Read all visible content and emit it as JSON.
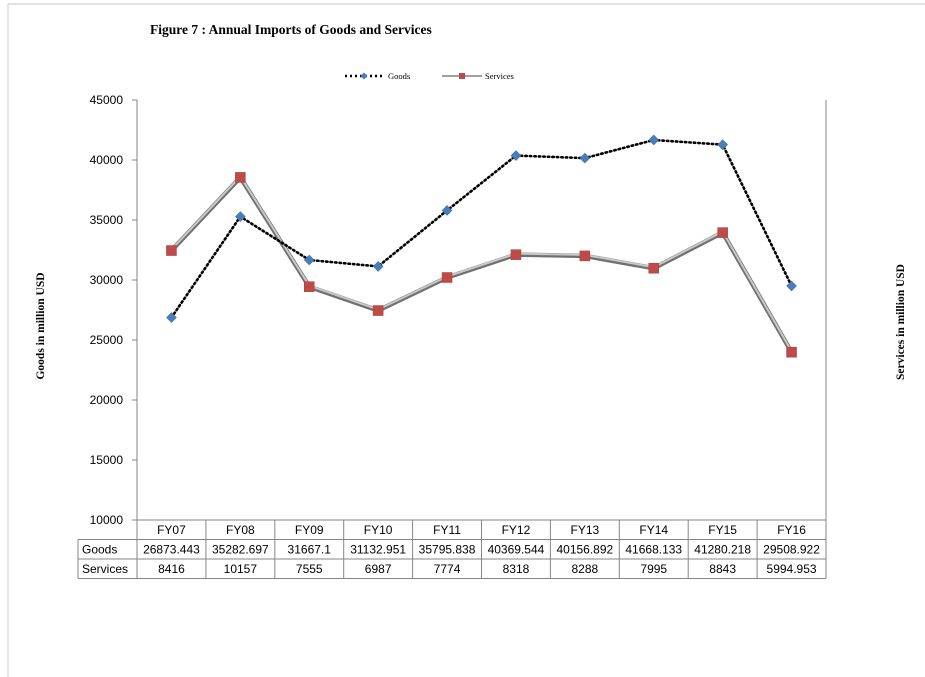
{
  "chart_data": {
    "type": "line",
    "title": "Figure  7 : Annual Imports of Goods and Services",
    "ylabel": "Goods in million USD",
    "y2label": "Services in million  USD",
    "categories": [
      "FY07",
      "FY08",
      "FY09",
      "FY10",
      "FY11",
      "FY12",
      "FY13",
      "FY14",
      "FY15",
      "FY16"
    ],
    "ylim": [
      10000,
      45000
    ],
    "yticks": [
      10000,
      15000,
      20000,
      25000,
      30000,
      35000,
      40000,
      45000
    ],
    "legend_position": "top-center",
    "grid": false,
    "series": [
      {
        "name": "Goods",
        "axis": "left",
        "color": "#4a7ebb",
        "line_style": "dotted",
        "marker": "diamond",
        "values": [
          26873.443,
          35282.697,
          31667.1,
          31132.951,
          35795.838,
          40369.544,
          40156.892,
          41668.133,
          41280.218,
          29508.922
        ],
        "table_values": [
          "26873.443",
          "35282.697",
          "31667.1",
          "31132.951",
          "35795.838",
          "40369.544",
          "40156.892",
          "41668.133",
          "41280.218",
          "29508.922"
        ]
      },
      {
        "name": "Services",
        "axis": "right",
        "color": "#be4b48",
        "line_style": "solid-gray",
        "marker": "square",
        "ylim": [
          2000,
          12000
        ],
        "values": [
          8416,
          10157,
          7555,
          6987,
          7774,
          8318,
          8288,
          7995,
          8843,
          5994.953
        ],
        "table_values": [
          "8416",
          "10157",
          "7555",
          "6987",
          "7774",
          "8318",
          "8288",
          "7995",
          "8843",
          "5994.953"
        ]
      }
    ],
    "table_row_labels": [
      "Goods",
      "Services"
    ]
  }
}
